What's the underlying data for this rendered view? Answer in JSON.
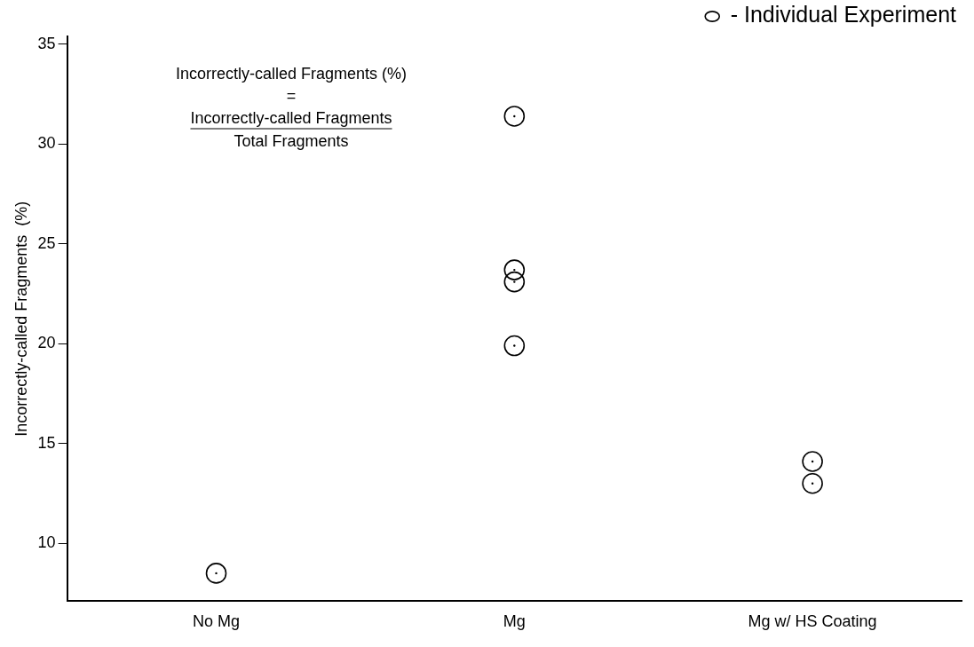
{
  "chart_data": {
    "type": "scatter",
    "ylabel": "Incorrectly-called Fragments  (%)",
    "categories": [
      "No Mg",
      "Mg",
      "Mg w/ HS Coating"
    ],
    "series": [
      {
        "name": "- Individual Experiment",
        "color": "#000000",
        "x": [
          "No Mg",
          "Mg",
          "Mg",
          "Mg",
          "Mg",
          "Mg w/ HS Coating",
          "Mg w/ HS Coating"
        ],
        "values": [
          8.5,
          31.4,
          23.7,
          23.1,
          19.9,
          14.1,
          13.0
        ]
      }
    ],
    "ylim": [
      7.1,
      35.4
    ],
    "yticks": [
      10,
      15,
      20,
      25,
      30,
      35
    ],
    "annotations": [
      "Incorrectly-called Fragments (%)",
      "=",
      "Incorrectly-called Fragments",
      "Total Fragments"
    ],
    "grid": false,
    "legend": "top right",
    "marker": "circle"
  }
}
